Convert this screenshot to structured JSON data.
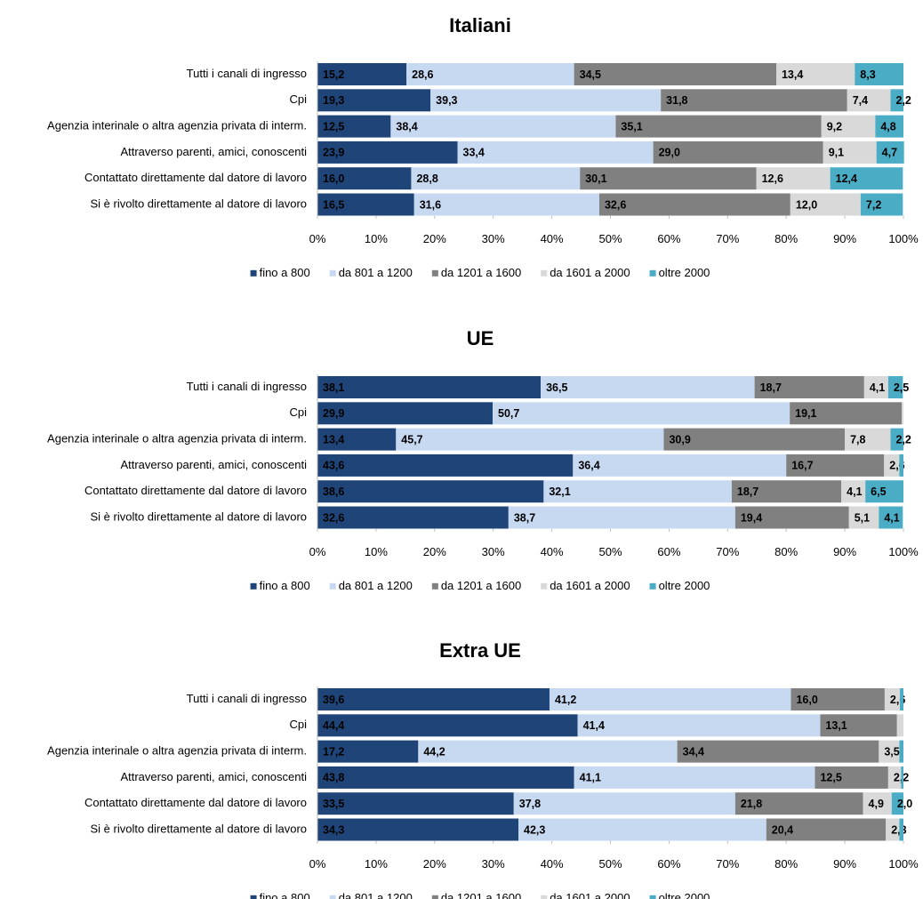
{
  "chart_data": [
    {
      "type": "bar",
      "orientation": "horizontal",
      "stacked": true,
      "title": "Italiani",
      "categories": [
        "Tutti i canali di ingresso",
        "Cpi",
        "Agenzia interinale o altra agenzia privata di interm.",
        "Attraverso parenti, amici, conoscenti",
        "Contattato direttamente dal datore di lavoro",
        "Si è rivolto direttamente al datore di lavoro"
      ],
      "series": [
        {
          "name": "fino a 800",
          "color": "#1f4478",
          "values": [
            15.2,
            19.3,
            12.5,
            23.9,
            16.0,
            16.5
          ],
          "value_labels": [
            "15,2",
            "19,3",
            "12,5",
            "23,9",
            "16,0",
            "16,5"
          ]
        },
        {
          "name": "da 801 a 1200",
          "color": "#c6d9f1",
          "values": [
            28.6,
            39.3,
            38.4,
            33.4,
            28.8,
            31.6
          ],
          "value_labels": [
            "28,6",
            "39,3",
            "38,4",
            "33,4",
            "28,8",
            "31,6"
          ]
        },
        {
          "name": "da 1201 a 1600",
          "color": "#808080",
          "values": [
            34.5,
            31.8,
            35.1,
            29.0,
            30.1,
            32.6
          ],
          "value_labels": [
            "34,5",
            "31,8",
            "35,1",
            "29,0",
            "30,1",
            "32,6"
          ]
        },
        {
          "name": "da 1601 a 2000",
          "color": "#d9d9d9",
          "values": [
            13.4,
            7.4,
            9.2,
            9.1,
            12.6,
            12.0
          ],
          "value_labels": [
            "13,4",
            "7,4",
            "9,2",
            "9,1",
            "12,6",
            "12,0"
          ]
        },
        {
          "name": "oltre 2000",
          "color": "#4bacc6",
          "values": [
            8.3,
            2.2,
            4.8,
            4.7,
            12.4,
            7.2
          ],
          "value_labels": [
            "8,3",
            "2,2",
            "4,8",
            "4,7",
            "12,4",
            "7,2"
          ]
        }
      ],
      "xlim": [
        0,
        100
      ],
      "xticks": [
        {
          "value": 0,
          "label": "0%"
        },
        {
          "value": 10,
          "label": "10%"
        },
        {
          "value": 20,
          "label": "20%"
        },
        {
          "value": 30,
          "label": "30%"
        },
        {
          "value": 40,
          "label": "40%"
        },
        {
          "value": 50,
          "label": "50%"
        },
        {
          "value": 60,
          "label": "60%"
        },
        {
          "value": 70,
          "label": "70%"
        },
        {
          "value": 80,
          "label": "80%"
        },
        {
          "value": 90,
          "label": "90%"
        },
        {
          "value": 100,
          "label": "100%"
        }
      ]
    },
    {
      "type": "bar",
      "orientation": "horizontal",
      "stacked": true,
      "title": "UE",
      "categories": [
        "Tutti i canali di ingresso",
        "Cpi",
        "Agenzia interinale o altra agenzia privata di interm.",
        "Attraverso parenti, amici, conoscenti",
        "Contattato direttamente dal datore di lavoro",
        "Si è rivolto direttamente al datore di lavoro"
      ],
      "series": [
        {
          "name": "fino a 800",
          "color": "#1f4478",
          "values": [
            38.1,
            29.9,
            13.4,
            43.6,
            38.6,
            32.6
          ],
          "value_labels": [
            "38,1",
            "29,9",
            "13,4",
            "43,6",
            "38,6",
            "32,6"
          ]
        },
        {
          "name": "da 801 a 1200",
          "color": "#c6d9f1",
          "values": [
            36.5,
            50.7,
            45.7,
            36.4,
            32.1,
            38.7
          ],
          "value_labels": [
            "36,5",
            "50,7",
            "45,7",
            "36,4",
            "32,1",
            "38,7"
          ]
        },
        {
          "name": "da 1201 a 1600",
          "color": "#808080",
          "values": [
            18.7,
            19.1,
            30.9,
            16.7,
            18.7,
            19.4
          ],
          "value_labels": [
            "18,7",
            "19,1",
            "30,9",
            "16,7",
            "18,7",
            "19,4"
          ]
        },
        {
          "name": "da 1601 a 2000",
          "color": "#d9d9d9",
          "values": [
            4.1,
            0.3,
            7.8,
            2.6,
            4.1,
            5.1
          ],
          "value_labels": [
            "4,1",
            null,
            "7,8",
            "2,6",
            "4,1",
            "5,1"
          ]
        },
        {
          "name": "oltre 2000",
          "color": "#4bacc6",
          "values": [
            2.5,
            0,
            2.2,
            0.7,
            6.5,
            4.1
          ],
          "value_labels": [
            "2,5",
            null,
            "2,2",
            null,
            "6,5",
            "4,1"
          ]
        }
      ],
      "xlim": [
        0,
        100
      ],
      "xticks": [
        {
          "value": 0,
          "label": "0%"
        },
        {
          "value": 10,
          "label": "10%"
        },
        {
          "value": 20,
          "label": "20%"
        },
        {
          "value": 30,
          "label": "30%"
        },
        {
          "value": 40,
          "label": "40%"
        },
        {
          "value": 50,
          "label": "50%"
        },
        {
          "value": 60,
          "label": "60%"
        },
        {
          "value": 70,
          "label": "70%"
        },
        {
          "value": 80,
          "label": "80%"
        },
        {
          "value": 90,
          "label": "90%"
        },
        {
          "value": 100,
          "label": "100%"
        }
      ]
    },
    {
      "type": "bar",
      "orientation": "horizontal",
      "stacked": true,
      "title": "Extra UE",
      "categories": [
        "Tutti i canali di ingresso",
        "Cpi",
        "Agenzia interinale o altra agenzia privata di interm.",
        "Attraverso parenti, amici, conoscenti",
        "Contattato direttamente dal datore di lavoro",
        "Si è rivolto direttamente al datore di lavoro"
      ],
      "series": [
        {
          "name": "fino a 800",
          "color": "#1f4478",
          "values": [
            39.6,
            44.4,
            17.2,
            43.8,
            33.5,
            34.3
          ],
          "value_labels": [
            "39,6",
            "44,4",
            "17,2",
            "43,8",
            "33,5",
            "34,3"
          ]
        },
        {
          "name": "da 801 a 1200",
          "color": "#c6d9f1",
          "values": [
            41.2,
            41.4,
            44.2,
            41.1,
            37.8,
            42.3
          ],
          "value_labels": [
            "41,2",
            "41,4",
            "44,2",
            "41,1",
            "37,8",
            "42,3"
          ]
        },
        {
          "name": "da 1201 a 1600",
          "color": "#808080",
          "values": [
            16.0,
            13.1,
            34.4,
            12.5,
            21.8,
            20.4
          ],
          "value_labels": [
            "16,0",
            "13,1",
            "34,4",
            "12,5",
            "21,8",
            "20,4"
          ]
        },
        {
          "name": "da 1601 a 2000",
          "color": "#d9d9d9",
          "values": [
            2.6,
            1.1,
            3.5,
            2.2,
            4.9,
            2.3
          ],
          "value_labels": [
            "2,6",
            null,
            "3,5",
            "2,2",
            "4,9",
            "2,3"
          ]
        },
        {
          "name": "oltre 2000",
          "color": "#4bacc6",
          "values": [
            0.6,
            0,
            0.7,
            0.4,
            2.0,
            0.7
          ],
          "value_labels": [
            null,
            null,
            null,
            null,
            "2,0",
            null
          ]
        }
      ],
      "xlim": [
        0,
        100
      ],
      "xticks": [
        {
          "value": 0,
          "label": "0%"
        },
        {
          "value": 10,
          "label": "10%"
        },
        {
          "value": 20,
          "label": "20%"
        },
        {
          "value": 30,
          "label": "30%"
        },
        {
          "value": 40,
          "label": "40%"
        },
        {
          "value": 50,
          "label": "50%"
        },
        {
          "value": 60,
          "label": "60%"
        },
        {
          "value": 70,
          "label": "70%"
        },
        {
          "value": 80,
          "label": "80%"
        },
        {
          "value": 90,
          "label": "90%"
        },
        {
          "value": 100,
          "label": "100%"
        }
      ]
    }
  ]
}
